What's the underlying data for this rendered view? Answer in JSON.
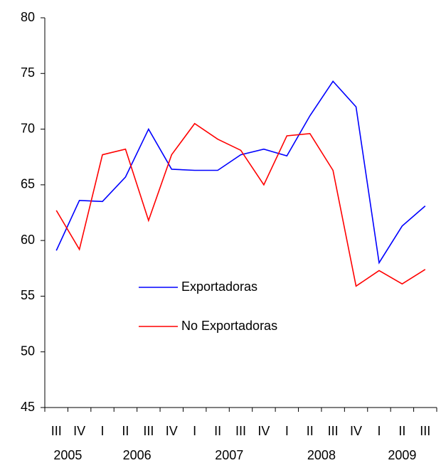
{
  "chart_data": {
    "type": "line",
    "categories": [
      "III",
      "IV",
      "I",
      "II",
      "III",
      "IV",
      "I",
      "II",
      "III",
      "IV",
      "I",
      "II",
      "III",
      "IV",
      "I",
      "II",
      "III"
    ],
    "year_labels": [
      "2005",
      "2006",
      "2007",
      "2008",
      "2009"
    ],
    "series": [
      {
        "name": "Exportadoras",
        "color": "#0000ff",
        "values": [
          59.1,
          63.6,
          63.5,
          65.7,
          70.0,
          66.4,
          66.3,
          66.3,
          67.7,
          68.2,
          67.6,
          71.2,
          74.3,
          72.0,
          58.0,
          61.3,
          63.1
        ]
      },
      {
        "name": "No Exportadoras",
        "color": "#ff0000",
        "values": [
          62.7,
          59.2,
          67.7,
          68.2,
          61.8,
          67.7,
          70.5,
          69.1,
          68.1,
          65.0,
          69.4,
          69.6,
          66.3,
          55.9,
          57.3,
          56.1,
          57.4
        ]
      }
    ],
    "ylim": [
      45,
      80
    ],
    "yticks": [
      45,
      50,
      55,
      60,
      65,
      70,
      75,
      80
    ],
    "grid": false
  }
}
